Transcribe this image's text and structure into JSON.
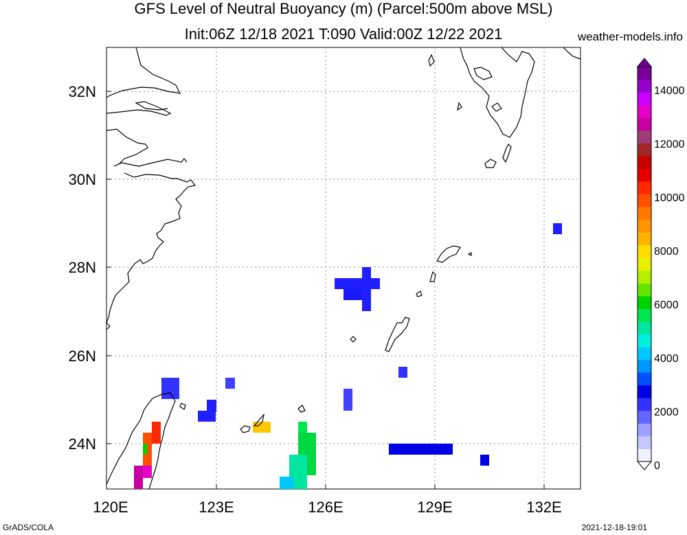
{
  "header": {
    "title_line1": "GFS Level of Neutral Buoyancy (m) (Parcel:500m above MSL)",
    "title_line2": "Init:06Z 12/18 2021 T:090 Valid:00Z 12/22 2021",
    "site": "weather-models.info"
  },
  "footer": {
    "left": "GrADS/COLA",
    "right": "2021-12-18-19:01"
  },
  "map": {
    "lon_range": [
      120,
      133
    ],
    "lat_range": [
      23,
      33
    ],
    "lon_ticks": [
      "120E",
      "123E",
      "126E",
      "129E",
      "132E"
    ],
    "lat_ticks": [
      "32N",
      "30N",
      "28N",
      "26N",
      "24N"
    ],
    "grid": true
  },
  "colorbar": {
    "labels": [
      "14000",
      "12000",
      "10000",
      "8000",
      "6000",
      "4000",
      "2000",
      "0"
    ],
    "range": [
      0,
      15000
    ],
    "colors": [
      "#f0f0ff",
      "#c8c8ff",
      "#a0a0ff",
      "#6464ff",
      "#3232ff",
      "#0000e6",
      "#0050ff",
      "#0096ff",
      "#00c8ff",
      "#00f0dc",
      "#00e6a0",
      "#00e650",
      "#00d200",
      "#64e600",
      "#b4f000",
      "#e6f000",
      "#ffdc00",
      "#ffb400",
      "#ff9600",
      "#ff7800",
      "#ff5000",
      "#ff2800",
      "#e60000",
      "#c80000",
      "#a02828",
      "#a03c78",
      "#c800a0",
      "#e600c8",
      "#c800ff",
      "#9600c8",
      "#780096"
    ]
  }
}
